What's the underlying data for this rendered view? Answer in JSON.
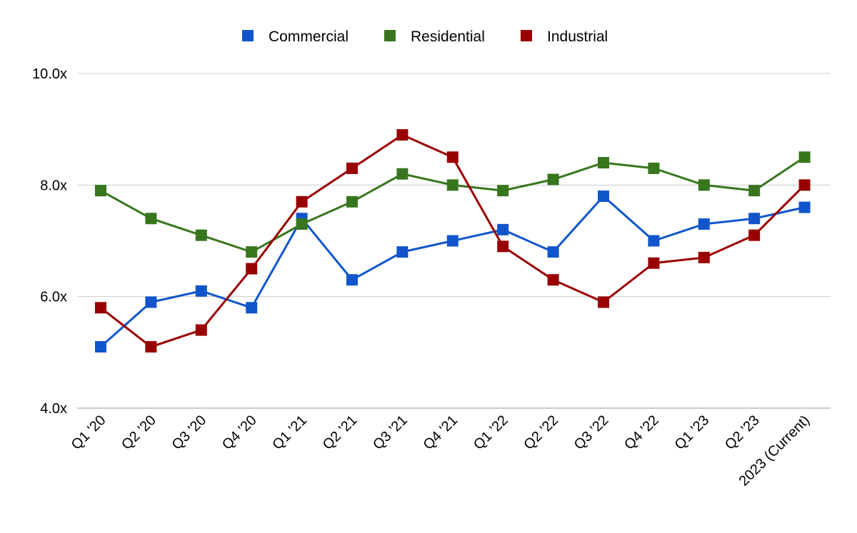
{
  "chart_data": {
    "type": "line",
    "title": "",
    "xlabel": "",
    "ylabel": "",
    "categories": [
      "Q1 '20",
      "Q2 '20",
      "Q3 '20",
      "Q4 '20",
      "Q1 '21",
      "Q2 '21",
      "Q3 '21",
      "Q4 '21",
      "Q1 '22",
      "Q2 '22",
      "Q3 '22",
      "Q4 '22",
      "Q1 '23",
      "Q2 '23",
      "2023 (Current)"
    ],
    "ylim": [
      4.0,
      10.0
    ],
    "yticks": [
      4.0,
      6.0,
      8.0,
      10.0
    ],
    "ytick_labels": [
      "4.0x",
      "6.0x",
      "8.0x",
      "10.0x"
    ],
    "grid": true,
    "legend_position": "top-center",
    "series": [
      {
        "name": "Commercial",
        "color": "#1155cc",
        "values": [
          5.1,
          5.9,
          6.1,
          5.8,
          7.4,
          6.3,
          6.8,
          7.0,
          7.2,
          6.8,
          7.8,
          7.0,
          7.3,
          7.4,
          7.6
        ]
      },
      {
        "name": "Residential",
        "color": "#38761d",
        "values": [
          7.9,
          7.4,
          7.1,
          6.8,
          7.3,
          7.7,
          8.2,
          8.0,
          7.9,
          8.1,
          8.4,
          8.3,
          8.0,
          7.9,
          8.5
        ]
      },
      {
        "name": "Industrial",
        "color": "#990000",
        "values": [
          5.8,
          5.1,
          5.4,
          6.5,
          7.7,
          8.3,
          8.9,
          8.5,
          6.9,
          6.3,
          5.9,
          6.6,
          6.7,
          7.1,
          8.0
        ]
      }
    ]
  }
}
